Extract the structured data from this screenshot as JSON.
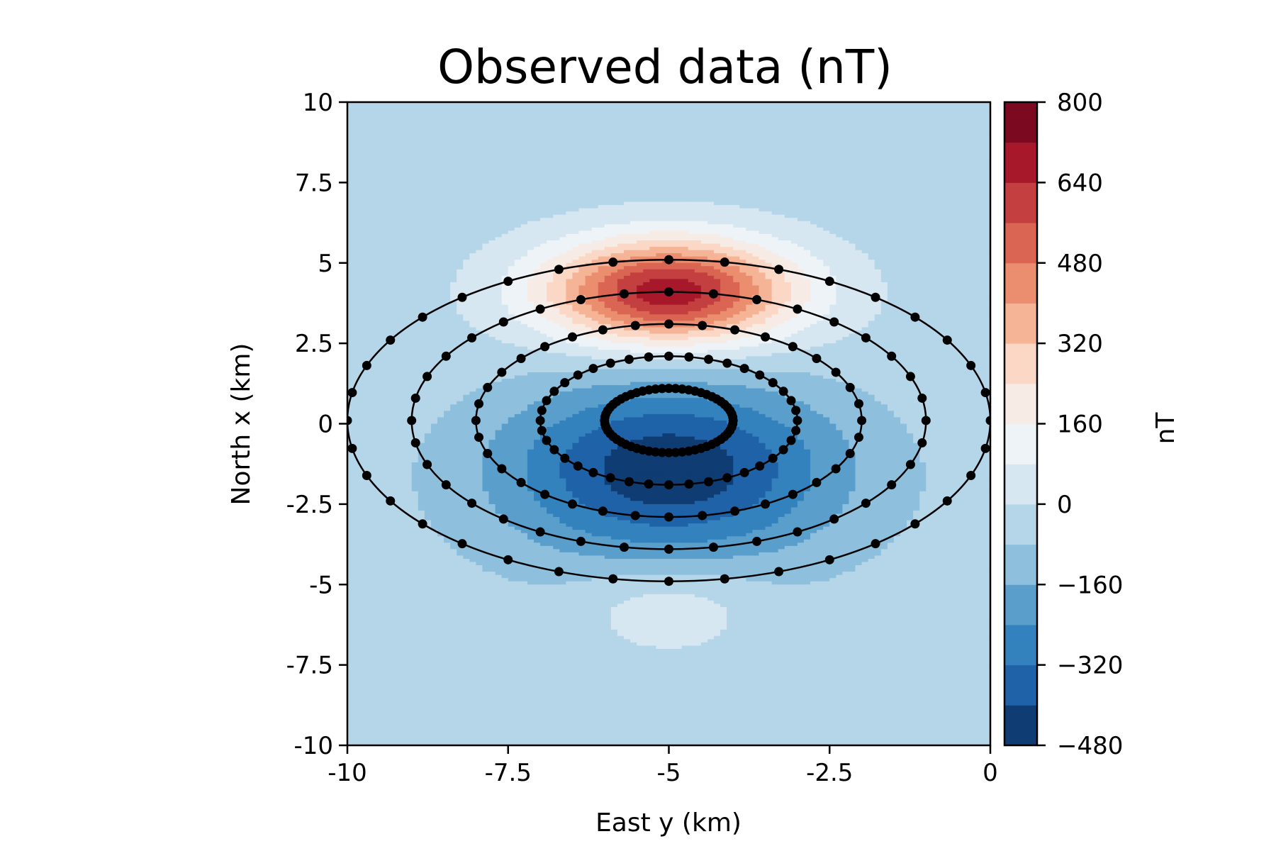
{
  "chart_data": {
    "type": "contour",
    "title": "Observed data (nT)",
    "xlabel": "East y (km)",
    "ylabel": "North x (km)",
    "xlim": [
      -10,
      0
    ],
    "ylim": [
      -10,
      10
    ],
    "x_ticks": [
      -10,
      -7.5,
      -5,
      -2.5,
      0
    ],
    "x_tick_labels": [
      "-10",
      "-7.5",
      "-5",
      "-2.5",
      "0"
    ],
    "y_ticks": [
      10,
      7.5,
      5,
      2.5,
      0,
      -2.5,
      -5,
      -7.5,
      -10
    ],
    "y_tick_labels": [
      "10",
      "7.5",
      "5",
      "2.5",
      "0",
      "-2.5",
      "-5",
      "-7.5",
      "-10"
    ],
    "colorbar": {
      "label": "nT",
      "range": [
        -480,
        800
      ],
      "ticks": [
        800,
        640,
        480,
        320,
        160,
        0,
        -160,
        -320,
        -480
      ],
      "tick_labels": [
        "800",
        "640",
        "480",
        "320",
        "160",
        "0",
        "−160",
        "−320",
        "−480"
      ],
      "levels": [
        -480,
        -400,
        -320,
        -240,
        -160,
        -80,
        0,
        80,
        160,
        240,
        320,
        400,
        480,
        560,
        640,
        720,
        800
      ],
      "colors": [
        "#0f3d73",
        "#1f62a8",
        "#3382bd",
        "#5a9ecc",
        "#8ec0de",
        "#b5d6e9",
        "#d7e7f2",
        "#eef3f7",
        "#f7ebe6",
        "#fbd8c6",
        "#f6b497",
        "#ea8e6f",
        "#d96552",
        "#c43f3f",
        "#a8182b",
        "#7b0a21"
      ]
    },
    "source": {
      "y": -5,
      "x": 0.1
    },
    "anomaly_model": {
      "dipole_positive_north": true,
      "peak_positive": 720,
      "peak_negative": -440
    },
    "survey_circles": [
      {
        "radius_km": 1.0,
        "points": 60
      },
      {
        "radius_km": 2.0,
        "points": 40
      },
      {
        "radius_km": 3.0,
        "points": 36
      },
      {
        "radius_km": 4.0,
        "points": 36
      },
      {
        "radius_km": 5.0,
        "points": 36
      }
    ]
  }
}
